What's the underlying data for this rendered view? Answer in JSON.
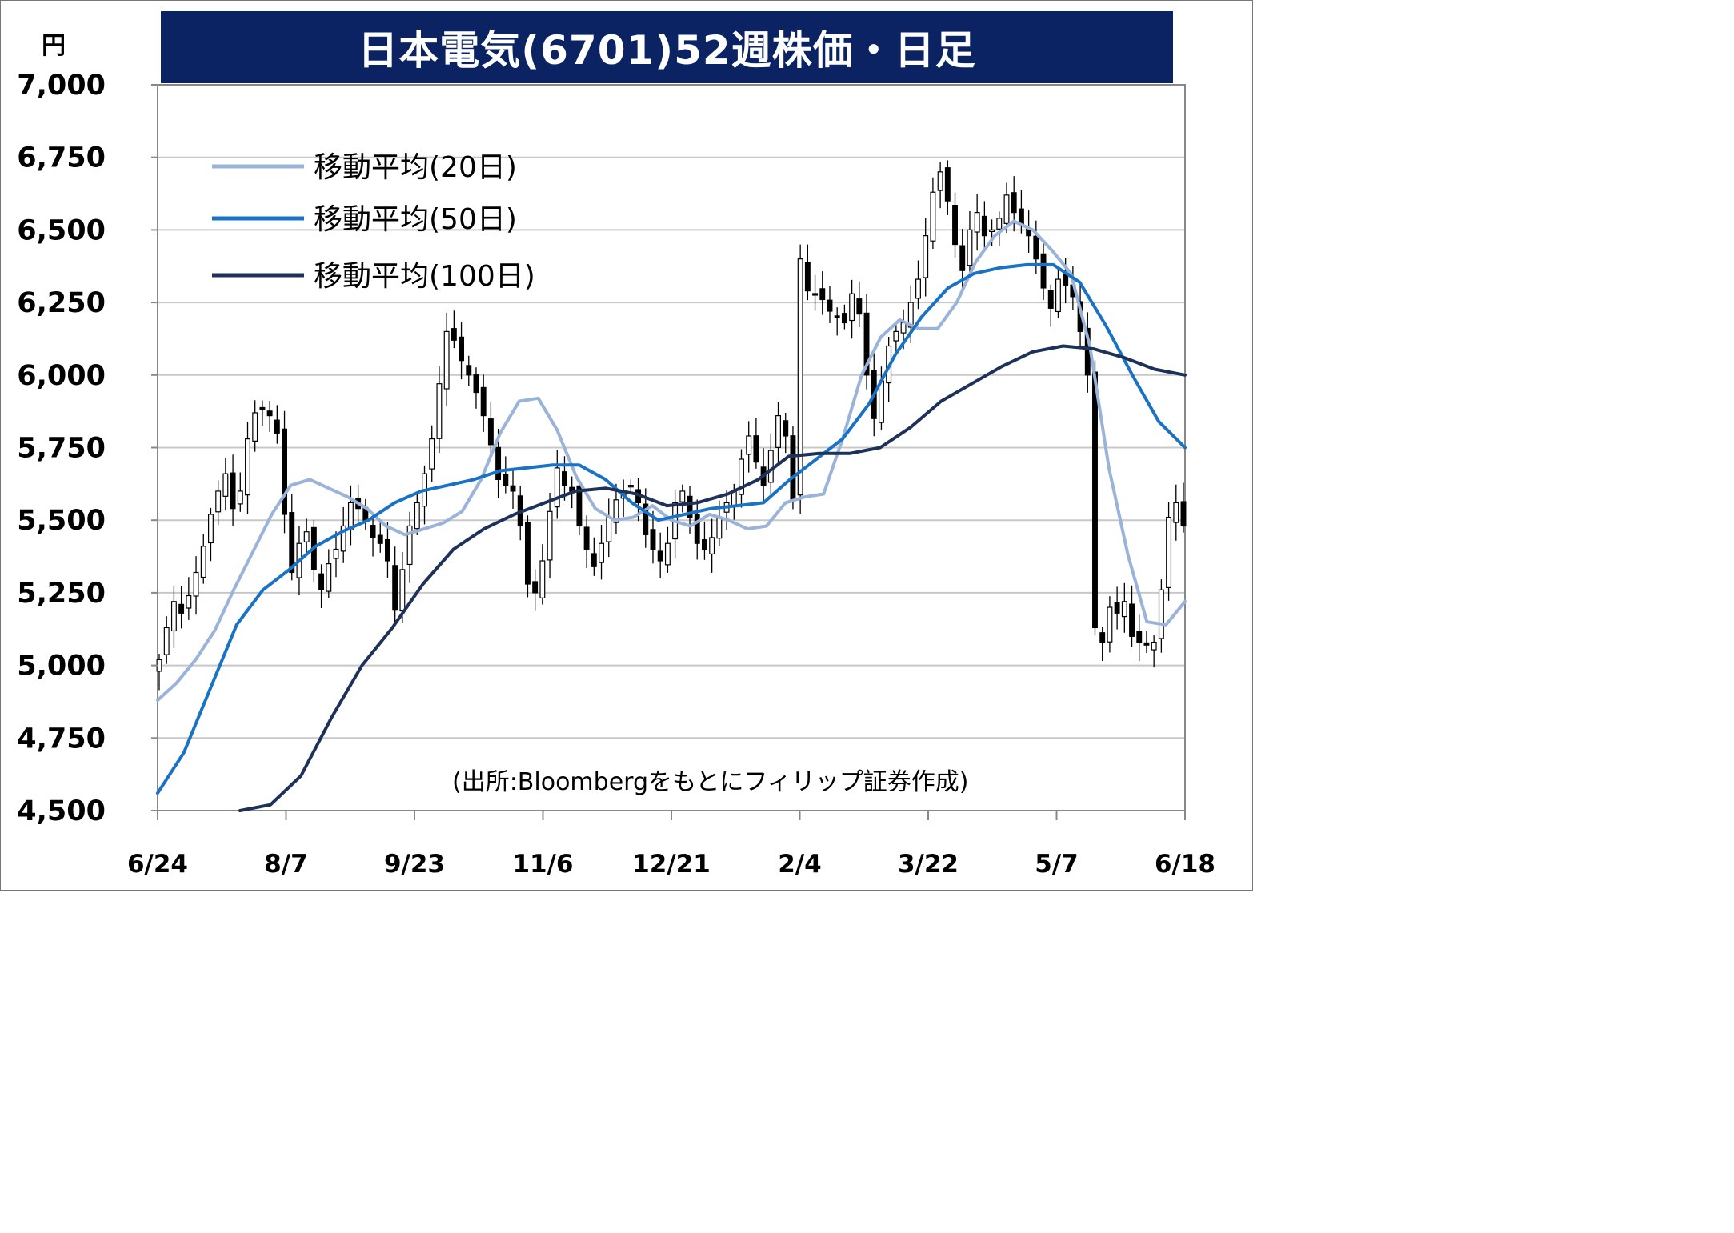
{
  "title": "日本電気(6701)52週株価・日足",
  "unit": "円",
  "source": "(出所:Bloombergをもとにフィリップ証券作成)",
  "colors": {
    "title_bg": "#0b2263",
    "ma20": "#9ab3d8",
    "ma50": "#1a72c4",
    "ma100": "#1e3158",
    "candle": "#000000",
    "grid": "#c8c8c8"
  },
  "chart_data": {
    "type": "candlestick",
    "title": "日本電気(6701)52週株価・日足",
    "ylabel": "円",
    "ylim": [
      4500,
      7000
    ],
    "yticks": [
      4500,
      4750,
      5000,
      5250,
      5500,
      5750,
      6000,
      6250,
      6500,
      6750,
      7000
    ],
    "ytick_labels": [
      "4,500",
      "4,750",
      "5,000",
      "5,250",
      "5,500",
      "5,750",
      "6,000",
      "6,250",
      "6,500",
      "6,750",
      "7,000"
    ],
    "xtick_labels": [
      "6/24",
      "8/7",
      "9/23",
      "11/6",
      "12/21",
      "2/4",
      "3/22",
      "5/7",
      "6/18"
    ],
    "grid": true,
    "legend_position": "top-left",
    "legend": [
      "移動平均(20日)",
      "移動平均(50日)",
      "移動平均(100日)"
    ],
    "candles_close": [
      5020,
      5130,
      5220,
      5180,
      5240,
      5320,
      5410,
      5520,
      5600,
      5660,
      5540,
      5600,
      5780,
      5870,
      5880,
      5860,
      5800,
      5520,
      5320,
      5420,
      5460,
      5330,
      5260,
      5350,
      5400,
      5480,
      5560,
      5540,
      5500,
      5440,
      5420,
      5360,
      5190,
      5330,
      5480,
      5560,
      5660,
      5780,
      5970,
      6150,
      6120,
      6050,
      6000,
      5940,
      5860,
      5760,
      5640,
      5620,
      5600,
      5480,
      5280,
      5250,
      5360,
      5530,
      5680,
      5620,
      5600,
      5480,
      5400,
      5340,
      5420,
      5510,
      5570,
      5600,
      5620,
      5560,
      5450,
      5400,
      5360,
      5420,
      5560,
      5600,
      5510,
      5420,
      5400,
      5440,
      5510,
      5560,
      5600,
      5710,
      5790,
      5700,
      5620,
      5740,
      5860,
      5790,
      5570,
      6400,
      6290,
      6280,
      6260,
      6220,
      6200,
      6180,
      6280,
      6210,
      6000,
      5850,
      5980,
      6100,
      6150,
      6180,
      6250,
      6330,
      6480,
      6630,
      6700,
      6600,
      6450,
      6360,
      6500,
      6560,
      6480,
      6500,
      6540,
      6620,
      6560,
      6520,
      6480,
      6400,
      6300,
      6230,
      6330,
      6310,
      6270,
      6150,
      6000,
      5130,
      5080,
      5200,
      5180,
      5220,
      5100,
      5080,
      5070,
      5080,
      5260,
      5510,
      5560,
      5480
    ],
    "series": [
      {
        "name": "移動平均(20日)",
        "values": [
          4880,
          4940,
          5020,
          5120,
          5260,
          5390,
          5520,
          5620,
          5640,
          5610,
          5580,
          5540,
          5480,
          5450,
          5470,
          5490,
          5530,
          5640,
          5800,
          5910,
          5920,
          5810,
          5650,
          5540,
          5500,
          5510,
          5550,
          5500,
          5480,
          5520,
          5500,
          5470,
          5480,
          5560,
          5580,
          5590,
          5780,
          6000,
          6130,
          6190,
          6160,
          6160,
          6250,
          6390,
          6480,
          6530,
          6500,
          6430,
          6350,
          6100,
          5680,
          5380,
          5150,
          5140,
          5220
        ]
      },
      {
        "name": "移動平均(50日)",
        "values": [
          4560,
          4700,
          4920,
          5140,
          5260,
          5330,
          5410,
          5460,
          5500,
          5560,
          5600,
          5620,
          5640,
          5670,
          5680,
          5690,
          5690,
          5640,
          5560,
          5500,
          5520,
          5540,
          5550,
          5560,
          5640,
          5710,
          5780,
          5900,
          6070,
          6200,
          6300,
          6350,
          6370,
          6380,
          6380,
          6320,
          6170,
          6000,
          5840,
          5750
        ]
      },
      {
        "name": "移動平均(100日)",
        "values": [
          4480,
          4520,
          4620,
          4820,
          5000,
          5130,
          5280,
          5400,
          5470,
          5520,
          5560,
          5600,
          5610,
          5590,
          5550,
          5560,
          5590,
          5640,
          5720,
          5730,
          5730,
          5750,
          5820,
          5910,
          5970,
          6030,
          6080,
          6100,
          6090,
          6060,
          6020,
          6000
        ]
      }
    ]
  }
}
